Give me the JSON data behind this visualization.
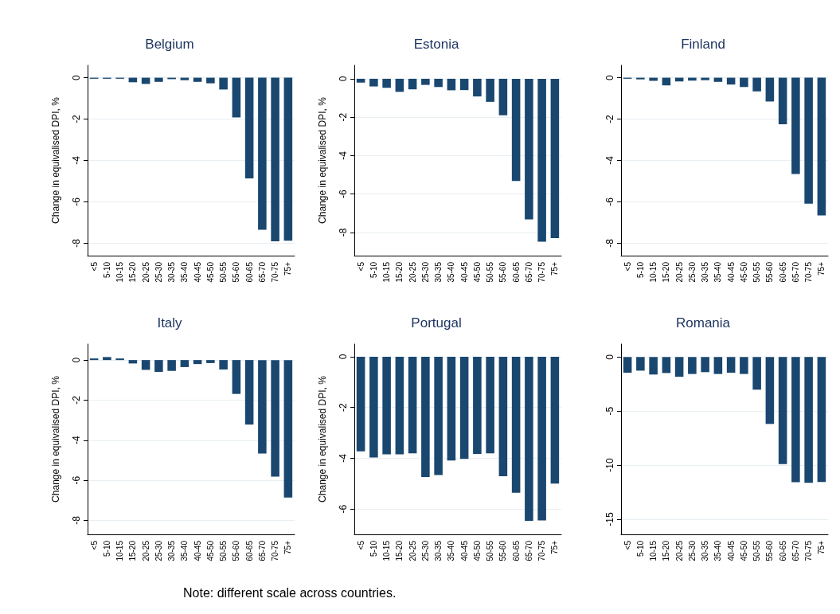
{
  "chart_data": [
    {
      "type": "bar",
      "title": "Belgium",
      "ylabel": "Change in equivalised DPI, %",
      "categories": [
        "<5",
        "5-10",
        "10-15",
        "15-20",
        "20-25",
        "25-30",
        "30-35",
        "35-40",
        "40-45",
        "45-50",
        "50-55",
        "55-60",
        "60-65",
        "65-70",
        "70-75",
        "75+"
      ],
      "color": "#1a476f",
      "values": [
        -0.05,
        -0.05,
        -0.05,
        -0.22,
        -0.3,
        -0.2,
        -0.07,
        -0.12,
        -0.2,
        -0.27,
        -0.57,
        -1.92,
        -4.87,
        -7.35,
        -7.91,
        -7.88
      ],
      "ylim": [
        -8.6,
        0.6
      ],
      "yticks": [
        0,
        -2,
        -4,
        -6,
        -8
      ],
      "grid": "y"
    },
    {
      "type": "bar",
      "title": "Estonia",
      "ylabel": "Change in equivalised DPI, %",
      "categories": [
        "<5",
        "5-10",
        "10-15",
        "15-20",
        "20-25",
        "25-30",
        "30-35",
        "35-40",
        "40-45",
        "45-50",
        "50-55",
        "55-60",
        "60-65",
        "65-70",
        "70-75",
        "75+"
      ],
      "color": "#1a476f",
      "values": [
        -0.2,
        -0.4,
        -0.47,
        -0.68,
        -0.55,
        -0.32,
        -0.43,
        -0.6,
        -0.59,
        -0.92,
        -1.2,
        -1.9,
        -5.32,
        -7.32,
        -8.47,
        -8.29
      ],
      "ylim": [
        -9.2,
        0.7
      ],
      "yticks": [
        0,
        -2,
        -4,
        -6,
        -8
      ],
      "grid": "y"
    },
    {
      "type": "bar",
      "title": "Finland",
      "categories": [
        "<5",
        "5-10",
        "10-15",
        "15-20",
        "20-25",
        "25-30",
        "30-35",
        "35-40",
        "40-45",
        "45-50",
        "50-55",
        "55-60",
        "60-65",
        "65-70",
        "70-75",
        "75+"
      ],
      "color": "#1a476f",
      "values": [
        -0.05,
        -0.08,
        -0.15,
        -0.37,
        -0.18,
        -0.14,
        -0.12,
        -0.2,
        -0.33,
        -0.45,
        -0.66,
        -1.15,
        -2.25,
        -4.65,
        -6.09,
        -6.66
      ],
      "ylim": [
        -8.6,
        0.6
      ],
      "yticks": [
        0,
        -2,
        -4,
        -6,
        -8
      ],
      "grid": "y"
    },
    {
      "type": "bar",
      "title": "Italy",
      "ylabel": "Change in equivalised DPI, %",
      "categories": [
        "<5",
        "5-10",
        "10-15",
        "15-20",
        "20-25",
        "25-30",
        "30-35",
        "35-40",
        "40-45",
        "45-50",
        "50-55",
        "55-60",
        "60-65",
        "65-70",
        "70-75",
        "75+"
      ],
      "color": "#1a476f",
      "values": [
        0.08,
        0.15,
        0.08,
        -0.17,
        -0.49,
        -0.59,
        -0.54,
        -0.35,
        -0.2,
        -0.15,
        -0.47,
        -1.69,
        -3.22,
        -4.67,
        -5.82,
        -6.86
      ],
      "ylim": [
        -8.7,
        0.8
      ],
      "yticks": [
        0,
        -2,
        -4,
        -6,
        -8
      ],
      "grid": "y"
    },
    {
      "type": "bar",
      "title": "Portugal",
      "ylabel": "Change in equivalised DPI, %",
      "categories": [
        "<5",
        "5-10",
        "10-15",
        "15-20",
        "20-25",
        "25-30",
        "30-35",
        "35-40",
        "40-45",
        "45-50",
        "50-55",
        "55-60",
        "60-65",
        "65-70",
        "70-75",
        "75+"
      ],
      "color": "#1a476f",
      "values": [
        -3.73,
        -3.97,
        -3.85,
        -3.85,
        -3.81,
        -4.74,
        -4.66,
        -4.09,
        -4.03,
        -3.83,
        -3.81,
        -4.71,
        -5.36,
        -6.47,
        -6.45,
        -5.0
      ],
      "ylim": [
        -7.0,
        0.5
      ],
      "yticks": [
        0,
        -2,
        -4,
        -6
      ],
      "grid": "y"
    },
    {
      "type": "bar",
      "title": "Romania",
      "categories": [
        "<5",
        "5-10",
        "10-15",
        "15-20",
        "20-25",
        "25-30",
        "30-35",
        "35-40",
        "40-45",
        "45-50",
        "50-55",
        "55-60",
        "60-65",
        "65-70",
        "70-75",
        "75+"
      ],
      "color": "#1a476f",
      "values": [
        -1.45,
        -1.26,
        -1.62,
        -1.48,
        -1.83,
        -1.57,
        -1.4,
        -1.57,
        -1.45,
        -1.57,
        -3.02,
        -6.19,
        -9.9,
        -11.57,
        -11.64,
        -11.55
      ],
      "ylim": [
        -16.4,
        1.2
      ],
      "yticks": [
        0,
        -5,
        -10,
        -15
      ],
      "grid": "y",
      "annotations": [
        "Note: different scale across countries."
      ]
    }
  ]
}
